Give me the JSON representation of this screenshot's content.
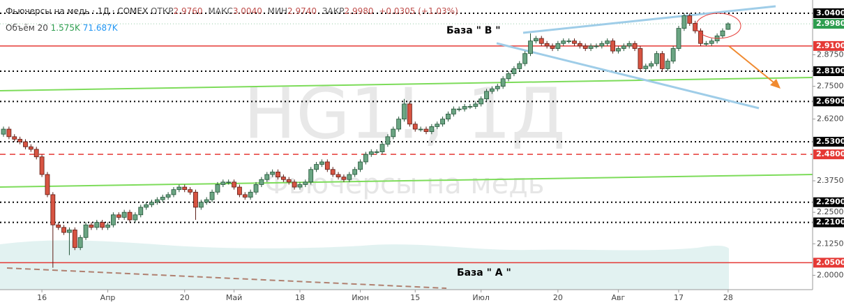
{
  "chart_data": {
    "type": "candlestick",
    "header": {
      "title": "Фьючерсы на медь · 1Д · COMEX",
      "ohlc": [
        {
          "label": "ОТКР",
          "value": "2.9760"
        },
        {
          "label": "МАКС",
          "value": "3.0040"
        },
        {
          "label": "МИН",
          "value": "2.9740"
        },
        {
          "label": "ЗАКР",
          "value": "2.9980"
        }
      ],
      "change": "+0.0305 (+1.03%)"
    },
    "volume_legend": {
      "label": "Объём 20",
      "value1": "1.575K",
      "value2": "71.687K"
    },
    "watermark": {
      "symbol": "HG1!, 1Д",
      "name": "Фьючерсы на медь"
    },
    "annotations": [
      {
        "text": "База \" B \""
      },
      {
        "text": "База \" A \""
      }
    ],
    "up_color": "#6ba583",
    "down_color": "#d75442",
    "ylim": [
      1.943,
      3.0925
    ],
    "yticks": [
      {
        "value": 2.875,
        "label": "2.8750"
      },
      {
        "value": 2.75,
        "label": "2.7500"
      },
      {
        "value": 2.62,
        "label": "2.6200"
      },
      {
        "value": 2.375,
        "label": "2.3750"
      },
      {
        "value": 2.25,
        "label": "2.2500"
      },
      {
        "value": 2.125,
        "label": "2.1250"
      },
      {
        "value": 2,
        "label": "2.0000"
      }
    ],
    "levels": [
      {
        "value": 3.04,
        "label": "3.0400",
        "color": "#000000",
        "style": "dotted"
      },
      {
        "value": 2.91,
        "label": "2.9100",
        "color": "#e53935",
        "style": "solid"
      },
      {
        "value": 2.81,
        "label": "2.8100",
        "color": "#000000",
        "style": "dotted"
      },
      {
        "value": 2.69,
        "label": "2.6900",
        "color": "#000000",
        "style": "dotted"
      },
      {
        "value": 2.53,
        "label": "2.5300",
        "color": "#000000",
        "style": "dotted"
      },
      {
        "value": 2.48,
        "label": "2.4800",
        "color": "#e53935",
        "style": "dashed"
      },
      {
        "value": 2.29,
        "label": "2.2900",
        "color": "#000000",
        "style": "dotted"
      },
      {
        "value": 2.21,
        "label": "2.2100",
        "color": "#000000",
        "style": "dotted"
      },
      {
        "value": 2.05,
        "label": "2.0500",
        "color": "#e53935",
        "style": "solid"
      }
    ],
    "last_price": {
      "value": 2.998,
      "label": "2.9980",
      "color": "#2e9e4f"
    },
    "xticks": [
      {
        "value": 7,
        "label": "16"
      },
      {
        "value": 19,
        "label": "Апр"
      },
      {
        "value": 33,
        "label": "20"
      },
      {
        "value": 42,
        "label": "Май"
      },
      {
        "value": 54,
        "label": "18"
      },
      {
        "value": 65,
        "label": "Июн"
      },
      {
        "value": 75,
        "label": "15"
      },
      {
        "value": 87,
        "label": "Июл"
      },
      {
        "value": 101,
        "label": "20"
      },
      {
        "value": 112,
        "label": "Авг"
      },
      {
        "value": 123,
        "label": "17"
      },
      {
        "value": 132,
        "label": "28"
      }
    ],
    "candles": [
      [
        2.56,
        2.59,
        2.55,
        2.58
      ],
      [
        2.58,
        2.59,
        2.54,
        2.55
      ],
      [
        2.55,
        2.56,
        2.53,
        2.54
      ],
      [
        2.54,
        2.55,
        2.52,
        2.53
      ],
      [
        2.53,
        2.54,
        2.5,
        2.51
      ],
      [
        2.51,
        2.52,
        2.49,
        2.5
      ],
      [
        2.5,
        2.51,
        2.46,
        2.47
      ],
      [
        2.47,
        2.48,
        2.39,
        2.4
      ],
      [
        2.4,
        2.41,
        2.31,
        2.32
      ],
      [
        2.32,
        2.33,
        2.03,
        2.2
      ],
      [
        2.2,
        2.21,
        2.18,
        2.19
      ],
      [
        2.19,
        2.2,
        2.16,
        2.17
      ],
      [
        2.17,
        2.19,
        2.08,
        2.18
      ],
      [
        2.18,
        2.19,
        2.1,
        2.11
      ],
      [
        2.11,
        2.16,
        2.1,
        2.15
      ],
      [
        2.15,
        2.21,
        2.14,
        2.2
      ],
      [
        2.2,
        2.21,
        2.18,
        2.19
      ],
      [
        2.19,
        2.22,
        2.18,
        2.21
      ],
      [
        2.21,
        2.22,
        2.18,
        2.19
      ],
      [
        2.19,
        2.21,
        2.18,
        2.2
      ],
      [
        2.2,
        2.25,
        2.19,
        2.24
      ],
      [
        2.24,
        2.25,
        2.22,
        2.23
      ],
      [
        2.23,
        2.26,
        2.22,
        2.25
      ],
      [
        2.25,
        2.26,
        2.21,
        2.22
      ],
      [
        2.22,
        2.25,
        2.21,
        2.24
      ],
      [
        2.24,
        2.28,
        2.23,
        2.27
      ],
      [
        2.27,
        2.29,
        2.26,
        2.28
      ],
      [
        2.28,
        2.3,
        2.27,
        2.29
      ],
      [
        2.29,
        2.31,
        2.28,
        2.3
      ],
      [
        2.3,
        2.32,
        2.29,
        2.31
      ],
      [
        2.31,
        2.33,
        2.3,
        2.32
      ],
      [
        2.32,
        2.35,
        2.31,
        2.34
      ],
      [
        2.34,
        2.36,
        2.33,
        2.35
      ],
      [
        2.35,
        2.36,
        2.33,
        2.34
      ],
      [
        2.34,
        2.35,
        2.32,
        2.33
      ],
      [
        2.33,
        2.34,
        2.22,
        2.27
      ],
      [
        2.27,
        2.3,
        2.26,
        2.29
      ],
      [
        2.29,
        2.31,
        2.28,
        2.3
      ],
      [
        2.3,
        2.34,
        2.29,
        2.33
      ],
      [
        2.33,
        2.37,
        2.32,
        2.36
      ],
      [
        2.36,
        2.38,
        2.35,
        2.37
      ],
      [
        2.37,
        2.38,
        2.36,
        2.37
      ],
      [
        2.37,
        2.38,
        2.34,
        2.35
      ],
      [
        2.35,
        2.36,
        2.31,
        2.32
      ],
      [
        2.32,
        2.33,
        2.3,
        2.31
      ],
      [
        2.31,
        2.34,
        2.3,
        2.33
      ],
      [
        2.33,
        2.37,
        2.32,
        2.36
      ],
      [
        2.36,
        2.39,
        2.35,
        2.38
      ],
      [
        2.38,
        2.41,
        2.37,
        2.4
      ],
      [
        2.4,
        2.42,
        2.39,
        2.41
      ],
      [
        2.41,
        2.42,
        2.38,
        2.39
      ],
      [
        2.39,
        2.4,
        2.37,
        2.38
      ],
      [
        2.38,
        2.39,
        2.36,
        2.37
      ],
      [
        2.37,
        2.38,
        2.34,
        2.35
      ],
      [
        2.35,
        2.37,
        2.34,
        2.36
      ],
      [
        2.36,
        2.38,
        2.35,
        2.37
      ],
      [
        2.37,
        2.43,
        2.36,
        2.42
      ],
      [
        2.42,
        2.45,
        2.41,
        2.44
      ],
      [
        2.44,
        2.46,
        2.43,
        2.45
      ],
      [
        2.45,
        2.46,
        2.41,
        2.42
      ],
      [
        2.42,
        2.43,
        2.39,
        2.4
      ],
      [
        2.4,
        2.41,
        2.38,
        2.39
      ],
      [
        2.39,
        2.4,
        2.37,
        2.38
      ],
      [
        2.38,
        2.41,
        2.37,
        2.4
      ],
      [
        2.4,
        2.43,
        2.39,
        2.42
      ],
      [
        2.42,
        2.46,
        2.41,
        2.45
      ],
      [
        2.45,
        2.49,
        2.44,
        2.48
      ],
      [
        2.48,
        2.5,
        2.47,
        2.49
      ],
      [
        2.49,
        2.5,
        2.48,
        2.49
      ],
      [
        2.49,
        2.53,
        2.48,
        2.52
      ],
      [
        2.52,
        2.56,
        2.51,
        2.55
      ],
      [
        2.55,
        2.59,
        2.54,
        2.58
      ],
      [
        2.58,
        2.63,
        2.57,
        2.62
      ],
      [
        2.62,
        2.7,
        2.61,
        2.68
      ],
      [
        2.68,
        2.69,
        2.59,
        2.6
      ],
      [
        2.6,
        2.61,
        2.57,
        2.58
      ],
      [
        2.58,
        2.59,
        2.57,
        2.58
      ],
      [
        2.58,
        2.59,
        2.56,
        2.57
      ],
      [
        2.57,
        2.6,
        2.56,
        2.59
      ],
      [
        2.59,
        2.61,
        2.58,
        2.6
      ],
      [
        2.6,
        2.63,
        2.59,
        2.62
      ],
      [
        2.62,
        2.65,
        2.61,
        2.64
      ],
      [
        2.64,
        2.67,
        2.63,
        2.66
      ],
      [
        2.66,
        2.67,
        2.65,
        2.66
      ],
      [
        2.66,
        2.68,
        2.65,
        2.67
      ],
      [
        2.67,
        2.68,
        2.66,
        2.67
      ],
      [
        2.67,
        2.69,
        2.66,
        2.68
      ],
      [
        2.68,
        2.71,
        2.67,
        2.7
      ],
      [
        2.7,
        2.74,
        2.69,
        2.73
      ],
      [
        2.73,
        2.75,
        2.72,
        2.74
      ],
      [
        2.74,
        2.76,
        2.73,
        2.75
      ],
      [
        2.75,
        2.79,
        2.74,
        2.78
      ],
      [
        2.78,
        2.81,
        2.77,
        2.8
      ],
      [
        2.8,
        2.83,
        2.79,
        2.82
      ],
      [
        2.82,
        2.85,
        2.81,
        2.84
      ],
      [
        2.84,
        2.89,
        2.83,
        2.88
      ],
      [
        2.88,
        2.96,
        2.87,
        2.93
      ],
      [
        2.93,
        2.95,
        2.92,
        2.94
      ],
      [
        2.94,
        2.95,
        2.91,
        2.92
      ],
      [
        2.92,
        2.93,
        2.9,
        2.91
      ],
      [
        2.91,
        2.92,
        2.89,
        2.9
      ],
      [
        2.9,
        2.93,
        2.89,
        2.92
      ],
      [
        2.92,
        2.94,
        2.91,
        2.93
      ],
      [
        2.93,
        2.94,
        2.92,
        2.93
      ],
      [
        2.93,
        2.94,
        2.91,
        2.92
      ],
      [
        2.92,
        2.93,
        2.9,
        2.91
      ],
      [
        2.91,
        2.92,
        2.89,
        2.9
      ],
      [
        2.9,
        2.92,
        2.89,
        2.91
      ],
      [
        2.91,
        2.92,
        2.9,
        2.91
      ],
      [
        2.91,
        2.93,
        2.9,
        2.92
      ],
      [
        2.92,
        2.94,
        2.91,
        2.93
      ],
      [
        2.93,
        2.94,
        2.88,
        2.89
      ],
      [
        2.89,
        2.91,
        2.88,
        2.9
      ],
      [
        2.9,
        2.92,
        2.89,
        2.91
      ],
      [
        2.91,
        2.93,
        2.9,
        2.92
      ],
      [
        2.92,
        2.93,
        2.89,
        2.9
      ],
      [
        2.9,
        2.91,
        2.81,
        2.82
      ],
      [
        2.82,
        2.84,
        2.81,
        2.83
      ],
      [
        2.83,
        2.85,
        2.82,
        2.84
      ],
      [
        2.84,
        2.89,
        2.83,
        2.88
      ],
      [
        2.88,
        2.89,
        2.81,
        2.82
      ],
      [
        2.82,
        2.86,
        2.81,
        2.85
      ],
      [
        2.85,
        2.91,
        2.84,
        2.9
      ],
      [
        2.9,
        2.99,
        2.89,
        2.98
      ],
      [
        2.98,
        3.04,
        2.97,
        3.03
      ],
      [
        3.03,
        3.04,
        2.99,
        3.0
      ],
      [
        3.0,
        3.01,
        2.96,
        2.97
      ],
      [
        2.97,
        2.98,
        2.91,
        2.92
      ],
      [
        2.92,
        2.93,
        2.91,
        2.92
      ],
      [
        2.92,
        2.94,
        2.91,
        2.93
      ],
      [
        2.93,
        2.96,
        2.92,
        2.95
      ],
      [
        2.95,
        2.98,
        2.94,
        2.97
      ],
      [
        2.976,
        3.004,
        2.974,
        2.998
      ]
    ]
  }
}
